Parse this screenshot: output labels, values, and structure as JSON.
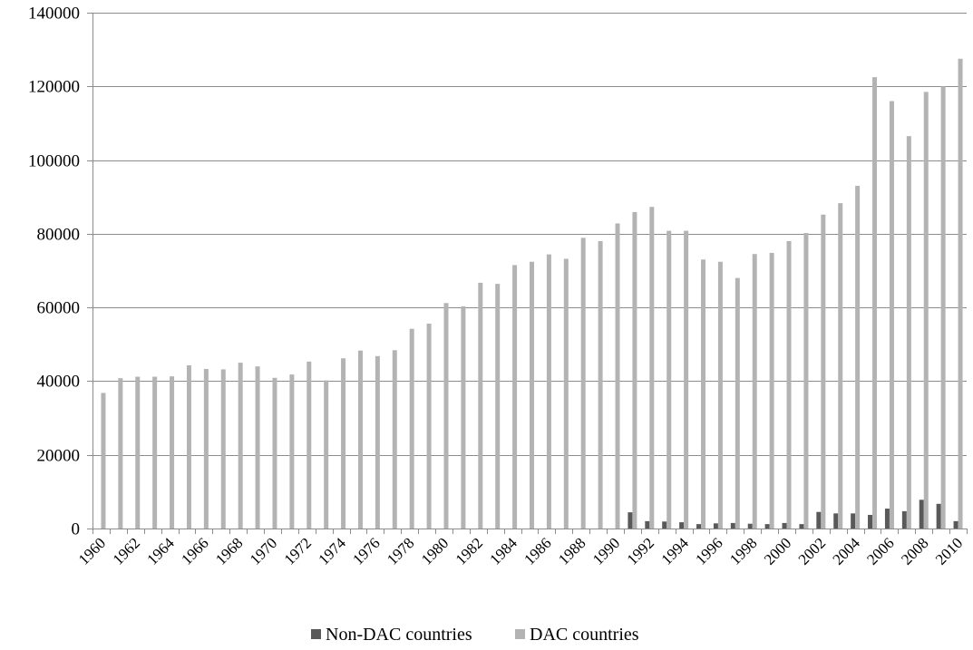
{
  "chart_data": {
    "type": "bar",
    "title": "",
    "xlabel": "",
    "ylabel": "",
    "ylim": [
      0,
      140000
    ],
    "yticks": [
      0,
      20000,
      40000,
      60000,
      80000,
      100000,
      120000,
      140000
    ],
    "grid": true,
    "legend_position": "bottom",
    "categories": [
      "1960",
      "1961",
      "1962",
      "1963",
      "1964",
      "1965",
      "1966",
      "1967",
      "1968",
      "1969",
      "1970",
      "1971",
      "1972",
      "1973",
      "1974",
      "1975",
      "1976",
      "1977",
      "1978",
      "1979",
      "1980",
      "1981",
      "1982",
      "1983",
      "1984",
      "1985",
      "1986",
      "1987",
      "1988",
      "1989",
      "1990",
      "1991",
      "1992",
      "1993",
      "1994",
      "1995",
      "1996",
      "1997",
      "1998",
      "1999",
      "2000",
      "2001",
      "2002",
      "2003",
      "2004",
      "2005",
      "2006",
      "2007",
      "2008",
      "2009",
      "2010"
    ],
    "xtick_labels": [
      "1960",
      "1962",
      "1964",
      "1966",
      "1968",
      "1970",
      "1972",
      "1974",
      "1976",
      "1978",
      "1980",
      "1982",
      "1984",
      "1986",
      "1988",
      "1990",
      "1992",
      "1994",
      "1996",
      "1998",
      "2000",
      "2002",
      "2004",
      "2006",
      "2008",
      "2010"
    ],
    "series": [
      {
        "name": "Non-DAC countries",
        "color": "#595959",
        "values": [
          0,
          0,
          0,
          0,
          0,
          0,
          0,
          0,
          0,
          0,
          0,
          0,
          0,
          0,
          0,
          0,
          0,
          0,
          0,
          0,
          0,
          0,
          0,
          0,
          0,
          0,
          0,
          0,
          0,
          0,
          0,
          4400,
          2000,
          1900,
          1700,
          1200,
          1400,
          1500,
          1300,
          1200,
          1500,
          1200,
          4500,
          4100,
          4100,
          3700,
          5400,
          4700,
          7800,
          6700,
          2000
        ]
      },
      {
        "name": "DAC countries",
        "color": "#b3b3b3",
        "values": [
          36800,
          40800,
          41200,
          41200,
          41300,
          44300,
          43300,
          43200,
          45000,
          44000,
          40900,
          41800,
          45300,
          40200,
          46200,
          48300,
          46800,
          48400,
          54200,
          55600,
          61200,
          60300,
          66700,
          66400,
          71500,
          72400,
          74400,
          73200,
          78900,
          78000,
          82800,
          85900,
          87300,
          80800,
          80800,
          73000,
          72400,
          68000,
          74500,
          74800,
          78000,
          80200,
          85200,
          88300,
          93000,
          122500,
          116000,
          106500,
          118500,
          120000,
          127500
        ]
      }
    ]
  }
}
